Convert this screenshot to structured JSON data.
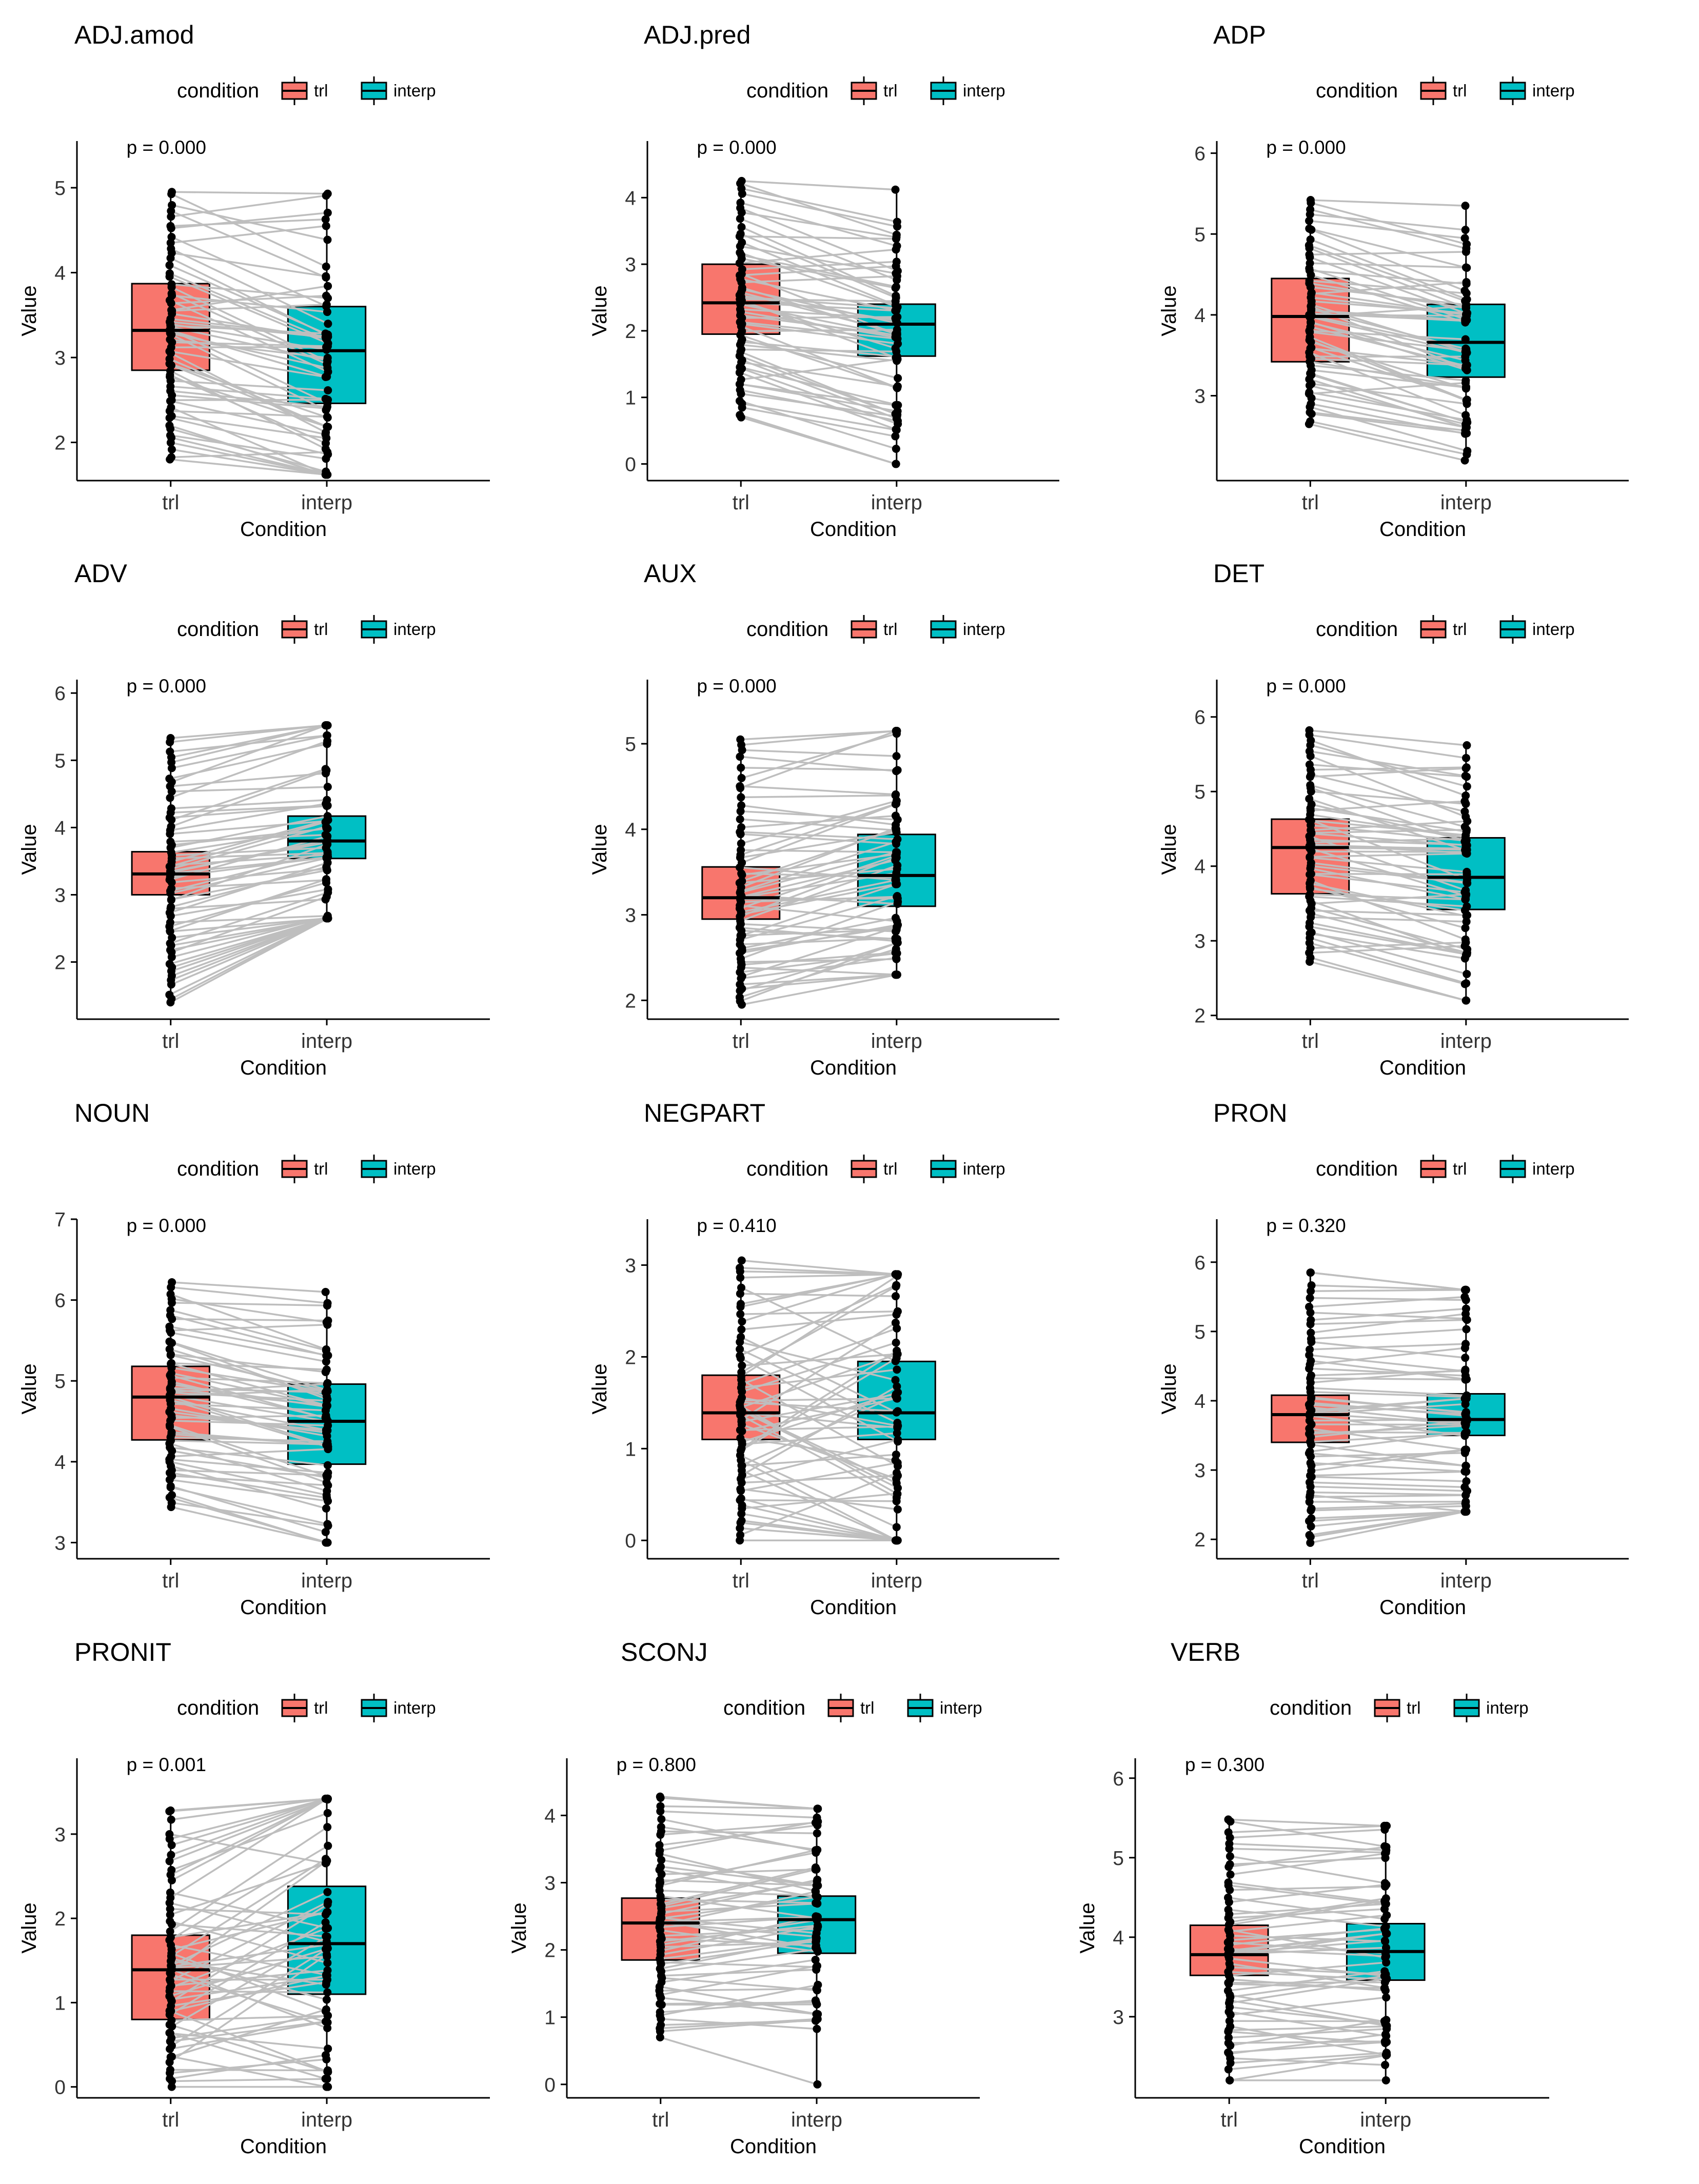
{
  "figure": {
    "background": "#ffffff"
  },
  "style": {
    "trl_color": "#F8766D",
    "interp_color": "#00BFC4",
    "line_color": "#BEBEBE",
    "point_color": "#000000",
    "text_color": "#000000"
  },
  "chart_data": [
    {
      "type": "box",
      "title": "ADJ.amod",
      "legend_title": "condition",
      "legend_labels": [
        "trl",
        "interp"
      ],
      "legend_position": "top",
      "categories": [
        "trl",
        "interp"
      ],
      "xlabel": "Condition",
      "ylabel": "Value",
      "p_label": "p = 0.000",
      "yticks": [
        2,
        3,
        4,
        5
      ],
      "ylim": [
        1.55,
        5.55
      ],
      "boxes": [
        {
          "category": "trl",
          "q1": 2.85,
          "median": 3.32,
          "q3": 3.87,
          "min": 1.8,
          "max": 4.95
        },
        {
          "category": "interp",
          "q1": 2.46,
          "median": 3.08,
          "q3": 3.6,
          "min": 1.62,
          "max": 4.93
        }
      ],
      "trend": -0.35,
      "spread": 0.8
    },
    {
      "type": "box",
      "title": "ADJ.pred",
      "legend_title": "condition",
      "legend_labels": [
        "trl",
        "interp"
      ],
      "legend_position": "top",
      "categories": [
        "trl",
        "interp"
      ],
      "xlabel": "Condition",
      "ylabel": "Value",
      "p_label": "p = 0.000",
      "yticks": [
        0,
        1,
        2,
        3,
        4
      ],
      "ylim": [
        -0.25,
        4.85
      ],
      "boxes": [
        {
          "category": "trl",
          "q1": 1.95,
          "median": 2.42,
          "q3": 3.0,
          "min": 0.7,
          "max": 4.25
        },
        {
          "category": "interp",
          "q1": 1.62,
          "median": 2.1,
          "q3": 2.4,
          "min": 0.0,
          "max": 4.12
        }
      ],
      "trend": -0.33,
      "spread": 0.9
    },
    {
      "type": "box",
      "title": "ADP",
      "legend_title": "condition",
      "legend_labels": [
        "trl",
        "interp"
      ],
      "legend_position": "top",
      "categories": [
        "trl",
        "interp"
      ],
      "xlabel": "Condition",
      "ylabel": "Value",
      "p_label": "p = 0.000",
      "yticks": [
        3,
        4,
        5,
        6
      ],
      "ylim": [
        1.95,
        6.15
      ],
      "boxes": [
        {
          "category": "trl",
          "q1": 3.42,
          "median": 3.98,
          "q3": 4.45,
          "min": 2.65,
          "max": 5.42
        },
        {
          "category": "interp",
          "q1": 3.23,
          "median": 3.66,
          "q3": 4.13,
          "min": 2.2,
          "max": 5.35
        }
      ],
      "trend": -0.3,
      "spread": 0.6
    },
    {
      "type": "box",
      "title": "ADV",
      "legend_title": "condition",
      "legend_labels": [
        "trl",
        "interp"
      ],
      "legend_position": "top",
      "categories": [
        "trl",
        "interp"
      ],
      "xlabel": "Condition",
      "ylabel": "Value",
      "p_label": "p = 0.000",
      "yticks": [
        2,
        3,
        4,
        5,
        6
      ],
      "ylim": [
        1.15,
        6.2
      ],
      "boxes": [
        {
          "category": "trl",
          "q1": 3.0,
          "median": 3.31,
          "q3": 3.64,
          "min": 1.4,
          "max": 5.33
        },
        {
          "category": "interp",
          "q1": 3.54,
          "median": 3.8,
          "q3": 4.17,
          "min": 2.65,
          "max": 5.52
        }
      ],
      "trend": 0.45,
      "spread": 0.5
    },
    {
      "type": "box",
      "title": "AUX",
      "legend_title": "condition",
      "legend_labels": [
        "trl",
        "interp"
      ],
      "legend_position": "top",
      "categories": [
        "trl",
        "interp"
      ],
      "xlabel": "Condition",
      "ylabel": "Value",
      "p_label": "p = 0.000",
      "yticks": [
        2,
        3,
        4,
        5
      ],
      "ylim": [
        1.78,
        5.75
      ],
      "boxes": [
        {
          "category": "trl",
          "q1": 2.95,
          "median": 3.2,
          "q3": 3.56,
          "min": 1.95,
          "max": 5.05
        },
        {
          "category": "interp",
          "q1": 3.1,
          "median": 3.46,
          "q3": 3.94,
          "min": 2.3,
          "max": 5.15
        }
      ],
      "trend": 0.25,
      "spread": 0.6
    },
    {
      "type": "box",
      "title": "DET",
      "legend_title": "condition",
      "legend_labels": [
        "trl",
        "interp"
      ],
      "legend_position": "top",
      "categories": [
        "trl",
        "interp"
      ],
      "xlabel": "Condition",
      "ylabel": "Value",
      "p_label": "p = 0.000",
      "yticks": [
        2,
        3,
        4,
        5,
        6
      ],
      "ylim": [
        1.95,
        6.5
      ],
      "boxes": [
        {
          "category": "trl",
          "q1": 3.63,
          "median": 4.25,
          "q3": 4.63,
          "min": 2.72,
          "max": 5.82
        },
        {
          "category": "interp",
          "q1": 3.42,
          "median": 3.85,
          "q3": 4.38,
          "min": 2.2,
          "max": 5.62
        }
      ],
      "trend": -0.35,
      "spread": 0.6
    },
    {
      "type": "box",
      "title": "NOUN",
      "legend_title": "condition",
      "legend_labels": [
        "trl",
        "interp"
      ],
      "legend_position": "top",
      "categories": [
        "trl",
        "interp"
      ],
      "xlabel": "Condition",
      "ylabel": "Value",
      "p_label": "p = 0.000",
      "yticks": [
        3,
        4,
        5,
        6,
        7
      ],
      "ylim": [
        2.8,
        7.0
      ],
      "boxes": [
        {
          "category": "trl",
          "q1": 4.27,
          "median": 4.8,
          "q3": 5.18,
          "min": 3.44,
          "max": 6.22
        },
        {
          "category": "interp",
          "q1": 3.97,
          "median": 4.5,
          "q3": 4.96,
          "min": 3.0,
          "max": 6.1
        }
      ],
      "trend": -0.3,
      "spread": 0.5
    },
    {
      "type": "box",
      "title": "NEGPART",
      "legend_title": "condition",
      "legend_labels": [
        "trl",
        "interp"
      ],
      "legend_position": "top",
      "categories": [
        "trl",
        "interp"
      ],
      "xlabel": "Condition",
      "ylabel": "Value",
      "p_label": "p = 0.410",
      "yticks": [
        0,
        1,
        2,
        3
      ],
      "ylim": [
        -0.2,
        3.5
      ],
      "boxes": [
        {
          "category": "trl",
          "q1": 1.1,
          "median": 1.39,
          "q3": 1.8,
          "min": 0.0,
          "max": 3.05
        },
        {
          "category": "interp",
          "q1": 1.1,
          "median": 1.39,
          "q3": 1.95,
          "min": 0.0,
          "max": 2.9
        }
      ],
      "trend": 0.0,
      "spread": 1.4
    },
    {
      "type": "box",
      "title": "PRON",
      "legend_title": "condition",
      "legend_labels": [
        "trl",
        "interp"
      ],
      "legend_position": "top",
      "categories": [
        "trl",
        "interp"
      ],
      "xlabel": "Condition",
      "ylabel": "Value",
      "p_label": "p = 0.320",
      "yticks": [
        2,
        3,
        4,
        5,
        6
      ],
      "ylim": [
        1.72,
        6.62
      ],
      "boxes": [
        {
          "category": "trl",
          "q1": 3.4,
          "median": 3.8,
          "q3": 4.08,
          "min": 1.95,
          "max": 5.85
        },
        {
          "category": "interp",
          "q1": 3.5,
          "median": 3.73,
          "q3": 4.1,
          "min": 2.4,
          "max": 5.6
        }
      ],
      "trend": 0.0,
      "spread": 0.4
    },
    {
      "type": "box",
      "title": "PRONIT",
      "legend_title": "condition",
      "legend_labels": [
        "trl",
        "interp"
      ],
      "legend_position": "top",
      "categories": [
        "trl",
        "interp"
      ],
      "xlabel": "Condition",
      "ylabel": "Value",
      "p_label": "p = 0.001",
      "yticks": [
        0,
        1,
        2,
        3
      ],
      "ylim": [
        -0.13,
        3.9
      ],
      "boxes": [
        {
          "category": "trl",
          "q1": 0.8,
          "median": 1.39,
          "q3": 1.8,
          "min": 0.0,
          "max": 3.28
        },
        {
          "category": "interp",
          "q1": 1.1,
          "median": 1.7,
          "q3": 2.38,
          "min": 0.0,
          "max": 3.42
        }
      ],
      "trend": 0.3,
      "spread": 1.3
    },
    {
      "type": "box",
      "title": "SCONJ",
      "legend_title": "condition",
      "legend_labels": [
        "trl",
        "interp"
      ],
      "legend_position": "top",
      "categories": [
        "trl",
        "interp"
      ],
      "xlabel": "Condition",
      "ylabel": "Value",
      "p_label": "p = 0.800",
      "yticks": [
        0,
        1,
        2,
        3,
        4
      ],
      "ylim": [
        -0.2,
        4.85
      ],
      "boxes": [
        {
          "category": "trl",
          "q1": 1.85,
          "median": 2.4,
          "q3": 2.77,
          "min": 0.7,
          "max": 4.28
        },
        {
          "category": "interp",
          "q1": 1.95,
          "median": 2.45,
          "q3": 2.8,
          "min": 0.0,
          "max": 4.1
        }
      ],
      "trend": 0.0,
      "spread": 0.7
    },
    {
      "type": "box",
      "title": "VERB",
      "legend_title": "condition",
      "legend_labels": [
        "trl",
        "interp"
      ],
      "legend_position": "top",
      "categories": [
        "trl",
        "interp"
      ],
      "xlabel": "Condition",
      "ylabel": "Value",
      "p_label": "p = 0.300",
      "yticks": [
        3,
        4,
        5,
        6
      ],
      "ylim": [
        1.98,
        6.25
      ],
      "boxes": [
        {
          "category": "trl",
          "q1": 3.52,
          "median": 3.78,
          "q3": 4.15,
          "min": 2.2,
          "max": 5.48
        },
        {
          "category": "interp",
          "q1": 3.46,
          "median": 3.82,
          "q3": 4.17,
          "min": 2.2,
          "max": 5.4
        }
      ],
      "trend": 0.0,
      "spread": 0.45
    }
  ]
}
